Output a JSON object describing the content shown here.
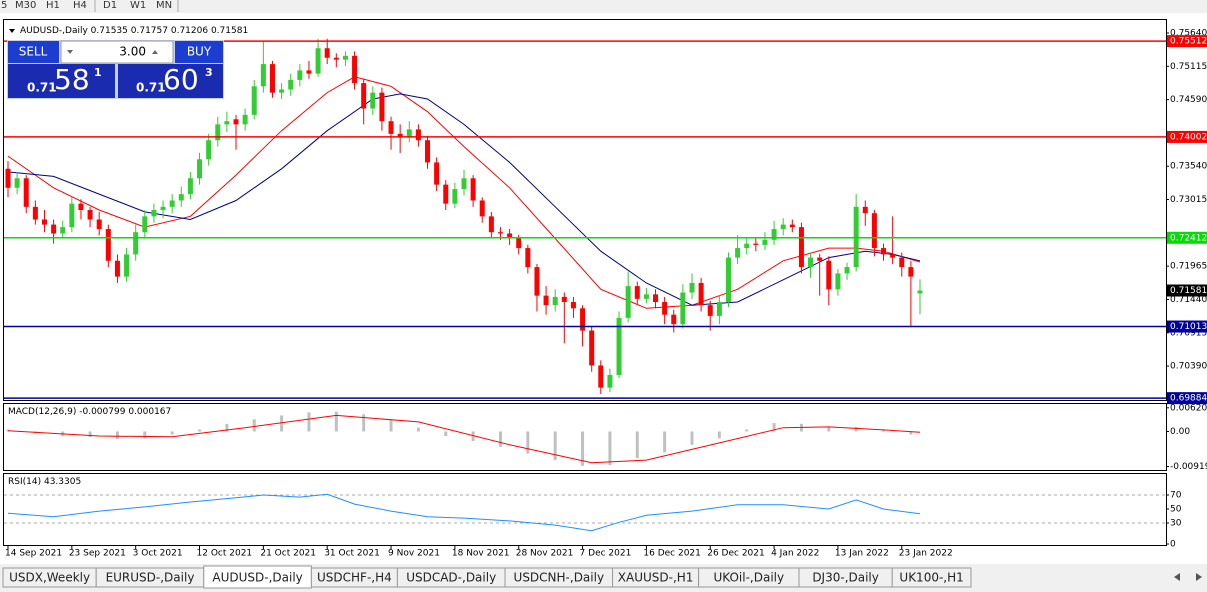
{
  "ui": {
    "toolbar": [
      "5",
      "M30",
      "H1",
      "H4",
      "D1",
      "W1",
      "MN"
    ],
    "trade": {
      "sell": "SELL",
      "buy": "BUY",
      "volume": "3.00",
      "sell_price": [
        "0.71",
        "58",
        "1"
      ],
      "buy_price": [
        "0.71",
        "60",
        "3"
      ]
    },
    "tabs": [
      "USDX,Weekly",
      "EURUSD-,Daily",
      "AUDUSD-,Daily",
      "USDCHF-,H4",
      "USDCAD-,Daily",
      "USDCNH-,Daily",
      "XAUUSD-,H1",
      "UKOil-,Daily",
      "DJ30-,Daily",
      "UK100-,H1"
    ],
    "active_tab": 2
  },
  "chart_data": [
    {
      "type": "candlestick",
      "title": "AUDUSD-,Daily",
      "up_color": "#32cd32",
      "down_color": "#ff0000",
      "ylim": [
        0.69855,
        0.75845
      ],
      "yticks": [
        {
          "value": 0.7564,
          "label": "0.75640"
        },
        {
          "value": 0.75115,
          "label": "0.75115"
        },
        {
          "value": 0.7459,
          "label": "0.74590"
        },
        {
          "value": 0.7354,
          "label": "0.73540"
        },
        {
          "value": 0.73015,
          "label": "0.73015"
        },
        {
          "value": 0.71965,
          "label": "0.71965"
        },
        {
          "value": 0.7144,
          "label": "0.71440"
        },
        {
          "value": 0.70915,
          "label": "0.70915"
        },
        {
          "value": 0.7039,
          "label": "0.70390"
        }
      ],
      "xticks": [
        {
          "value": 0,
          "label": "14 Sep 2021"
        },
        {
          "value": 7,
          "label": "23 Sep 2021"
        },
        {
          "value": 14,
          "label": "3 Oct 2021"
        },
        {
          "value": 21,
          "label": "12 Oct 2021"
        },
        {
          "value": 28,
          "label": "21 Oct 2021"
        },
        {
          "value": 35,
          "label": "31 Oct 2021"
        },
        {
          "value": 42,
          "label": "9 Nov 2021"
        },
        {
          "value": 49,
          "label": "18 Nov 2021"
        },
        {
          "value": 56,
          "label": "28 Nov 2021"
        },
        {
          "value": 63,
          "label": "7 Dec 2021"
        },
        {
          "value": 70,
          "label": "16 Dec 2021"
        },
        {
          "value": 77,
          "label": "26 Dec 2021"
        },
        {
          "value": 84,
          "label": "4 Jan 2022"
        },
        {
          "value": 91,
          "label": "13 Jan 2022"
        },
        {
          "value": 98,
          "label": "23 Jan 2022"
        }
      ],
      "hlines": [
        {
          "value": 0.75512,
          "color": "#ff0000"
        },
        {
          "value": 0.74002,
          "color": "#ff0000"
        },
        {
          "value": 0.72412,
          "color": "#00e000"
        },
        {
          "value": 0.71013,
          "color": "#0000a0"
        },
        {
          "value": 0.69884,
          "color": "#0000a0"
        }
      ],
      "candles": [
        [
          0.735,
          0.7362,
          0.7305,
          0.732
        ],
        [
          0.732,
          0.7345,
          0.731,
          0.7335
        ],
        [
          0.7335,
          0.734,
          0.728,
          0.729
        ],
        [
          0.729,
          0.73,
          0.7262,
          0.727
        ],
        [
          0.727,
          0.7285,
          0.725,
          0.7262
        ],
        [
          0.7262,
          0.727,
          0.7232,
          0.7248
        ],
        [
          0.7248,
          0.7268,
          0.724,
          0.7258
        ],
        [
          0.7258,
          0.7305,
          0.725,
          0.7295
        ],
        [
          0.7295,
          0.7302,
          0.727,
          0.7285
        ],
        [
          0.7285,
          0.729,
          0.7258,
          0.727
        ],
        [
          0.727,
          0.7282,
          0.7245,
          0.7255
        ],
        [
          0.7255,
          0.7262,
          0.7195,
          0.7205
        ],
        [
          0.7205,
          0.7215,
          0.717,
          0.718
        ],
        [
          0.718,
          0.7225,
          0.7172,
          0.7215
        ],
        [
          0.7215,
          0.7262,
          0.7205,
          0.725
        ],
        [
          0.725,
          0.7285,
          0.724,
          0.7275
        ],
        [
          0.7275,
          0.7295,
          0.7265,
          0.7285
        ],
        [
          0.7285,
          0.73,
          0.7272,
          0.729
        ],
        [
          0.729,
          0.731,
          0.728,
          0.73
        ],
        [
          0.73,
          0.7322,
          0.729,
          0.731
        ],
        [
          0.731,
          0.7345,
          0.7302,
          0.7335
        ],
        [
          0.7335,
          0.7375,
          0.7325,
          0.7365
        ],
        [
          0.7365,
          0.7405,
          0.7355,
          0.7395
        ],
        [
          0.7395,
          0.7432,
          0.7385,
          0.742
        ],
        [
          0.742,
          0.744,
          0.7408,
          0.7425
        ],
        [
          0.7428,
          0.7435,
          0.738,
          0.742
        ],
        [
          0.742,
          0.7445,
          0.741,
          0.7435
        ],
        [
          0.7435,
          0.749,
          0.7428,
          0.748
        ],
        [
          0.748,
          0.755,
          0.747,
          0.7515
        ],
        [
          0.7515,
          0.752,
          0.7462,
          0.747
        ],
        [
          0.747,
          0.7485,
          0.746,
          0.7475
        ],
        [
          0.7475,
          0.75,
          0.7465,
          0.749
        ],
        [
          0.749,
          0.7515,
          0.748,
          0.7505
        ],
        [
          0.7505,
          0.752,
          0.7492,
          0.75
        ],
        [
          0.75,
          0.7555,
          0.7495,
          0.754
        ],
        [
          0.754,
          0.7555,
          0.7515,
          0.7525
        ],
        [
          0.7525,
          0.7532,
          0.751,
          0.7522
        ],
        [
          0.7522,
          0.7535,
          0.7512,
          0.7528
        ],
        [
          0.7528,
          0.7535,
          0.7475,
          0.7485
        ],
        [
          0.7485,
          0.7492,
          0.742,
          0.7445
        ],
        [
          0.7445,
          0.748,
          0.7435,
          0.747
        ],
        [
          0.747,
          0.7478,
          0.741,
          0.7425
        ],
        [
          0.7425,
          0.7432,
          0.738,
          0.7405
        ],
        [
          0.7405,
          0.742,
          0.7375,
          0.74
        ],
        [
          0.74,
          0.7425,
          0.7392,
          0.7412
        ],
        [
          0.7412,
          0.742,
          0.7385,
          0.7395
        ],
        [
          0.7395,
          0.7402,
          0.735,
          0.736
        ],
        [
          0.736,
          0.7368,
          0.7315,
          0.7325
        ],
        [
          0.7325,
          0.7332,
          0.7285,
          0.7295
        ],
        [
          0.7295,
          0.7328,
          0.7288,
          0.7318
        ],
        [
          0.7318,
          0.7348,
          0.7308,
          0.7335
        ],
        [
          0.7335,
          0.734,
          0.729,
          0.73
        ],
        [
          0.73,
          0.7305,
          0.7265,
          0.7275
        ],
        [
          0.7275,
          0.7282,
          0.724,
          0.725
        ],
        [
          0.725,
          0.7258,
          0.7238,
          0.7248
        ],
        [
          0.7248,
          0.7255,
          0.723,
          0.724
        ],
        [
          0.724,
          0.7246,
          0.7215,
          0.7225
        ],
        [
          0.7225,
          0.723,
          0.7185,
          0.7195
        ],
        [
          0.7195,
          0.72,
          0.7125,
          0.715
        ],
        [
          0.715,
          0.7165,
          0.712,
          0.7135
        ],
        [
          0.7135,
          0.716,
          0.7125,
          0.7148
        ],
        [
          0.7148,
          0.7155,
          0.7075,
          0.714
        ],
        [
          0.714,
          0.7148,
          0.7115,
          0.713
        ],
        [
          0.713,
          0.7135,
          0.707,
          0.7095
        ],
        [
          0.7095,
          0.7102,
          0.703,
          0.704
        ],
        [
          0.704,
          0.7048,
          0.6995,
          0.7005
        ],
        [
          0.7005,
          0.7035,
          0.6998,
          0.7025
        ],
        [
          0.7025,
          0.7125,
          0.702,
          0.7115
        ],
        [
          0.7115,
          0.7188,
          0.7108,
          0.7165
        ],
        [
          0.7165,
          0.7172,
          0.7135,
          0.7145
        ],
        [
          0.7145,
          0.7162,
          0.7138,
          0.7152
        ],
        [
          0.7152,
          0.716,
          0.713,
          0.714
        ],
        [
          0.714,
          0.7148,
          0.7105,
          0.712
        ],
        [
          0.712,
          0.7128,
          0.7092,
          0.7105
        ],
        [
          0.7105,
          0.7168,
          0.7098,
          0.7155
        ],
        [
          0.7155,
          0.7185,
          0.7145,
          0.717
        ],
        [
          0.717,
          0.7178,
          0.7125,
          0.7135
        ],
        [
          0.7135,
          0.7142,
          0.7095,
          0.7118
        ],
        [
          0.7118,
          0.715,
          0.7105,
          0.714
        ],
        [
          0.714,
          0.7218,
          0.7132,
          0.721
        ],
        [
          0.721,
          0.7245,
          0.72,
          0.7225
        ],
        [
          0.7225,
          0.724,
          0.7215,
          0.7232
        ],
        [
          0.7232,
          0.724,
          0.722,
          0.723
        ],
        [
          0.723,
          0.725,
          0.7222,
          0.7238
        ],
        [
          0.7238,
          0.7268,
          0.723,
          0.7255
        ],
        [
          0.7255,
          0.7272,
          0.7245,
          0.7262
        ],
        [
          0.7262,
          0.727,
          0.725,
          0.7258
        ],
        [
          0.7258,
          0.7265,
          0.7185,
          0.7195
        ],
        [
          0.7195,
          0.7218,
          0.7178,
          0.721
        ],
        [
          0.721,
          0.7216,
          0.715,
          0.7205
        ],
        [
          0.7205,
          0.7212,
          0.7135,
          0.716
        ],
        [
          0.716,
          0.7192,
          0.715,
          0.7185
        ],
        [
          0.7185,
          0.7202,
          0.7175,
          0.7195
        ],
        [
          0.7195,
          0.731,
          0.7188,
          0.729
        ],
        [
          0.729,
          0.73,
          0.726,
          0.728
        ],
        [
          0.728,
          0.7285,
          0.7212,
          0.7225
        ],
        [
          0.7225,
          0.7232,
          0.7205,
          0.7215
        ],
        [
          0.7215,
          0.7275,
          0.72,
          0.721
        ],
        [
          0.721,
          0.7218,
          0.718,
          0.7195
        ],
        [
          0.7195,
          0.7205,
          0.71,
          0.718
        ],
        [
          0.71535,
          0.71757,
          0.71206,
          0.71581
        ]
      ],
      "series": [
        {
          "color": "#ff0000",
          "x": [
            0,
            5,
            10,
            15,
            20,
            25,
            30,
            35,
            38,
            42,
            46,
            50,
            55,
            60,
            65,
            70,
            75,
            80,
            85,
            90,
            93,
            96,
            100
          ],
          "values": [
            0.737,
            0.732,
            0.7285,
            0.7258,
            0.7275,
            0.734,
            0.741,
            0.747,
            0.7495,
            0.748,
            0.744,
            0.7385,
            0.732,
            0.724,
            0.716,
            0.713,
            0.7135,
            0.716,
            0.7205,
            0.7225,
            0.7225,
            0.722,
            0.7203
          ]
        },
        {
          "color": "#00008b",
          "x": [
            0,
            5,
            10,
            15,
            20,
            25,
            30,
            35,
            40,
            43,
            46,
            50,
            55,
            60,
            65,
            70,
            75,
            80,
            85,
            90,
            94,
            97,
            100
          ],
          "values": [
            0.7345,
            0.7338,
            0.731,
            0.7282,
            0.727,
            0.73,
            0.735,
            0.741,
            0.746,
            0.7468,
            0.746,
            0.742,
            0.736,
            0.729,
            0.722,
            0.717,
            0.7135,
            0.714,
            0.7175,
            0.721,
            0.722,
            0.7215,
            0.7205
          ]
        }
      ]
    },
    {
      "type": "macd",
      "title": "MACD(12,26,9)",
      "current": [
        -0.000799,
        0.000167
      ],
      "ylim": [
        -0.0101,
        0.0072
      ],
      "yticks": [
        0.006201,
        {
          "value": 0,
          "label": "0.00"
        },
        -0.00919
      ],
      "series": [
        {
          "type": "bar",
          "color": "#c0c0c0",
          "x": [
            0,
            3,
            6,
            9,
            12,
            15,
            18,
            21,
            24,
            27,
            30,
            33,
            36,
            39,
            42,
            45,
            48,
            51,
            54,
            57,
            60,
            63,
            66,
            69,
            72,
            75,
            78,
            81,
            84,
            87,
            90,
            93,
            96,
            99
          ],
          "values": [
            0.0005,
            -0.0005,
            -0.0012,
            -0.0015,
            -0.002,
            -0.0018,
            -0.0008,
            0.0005,
            0.002,
            0.0032,
            0.0042,
            0.005,
            0.0052,
            0.0045,
            0.003,
            0.001,
            -0.0012,
            -0.0025,
            -0.004,
            -0.0058,
            -0.0075,
            -0.009,
            -0.0088,
            -0.007,
            -0.0055,
            -0.0035,
            -0.0018,
            0.0005,
            0.0022,
            0.002,
            0.001,
            0.0012,
            0.0004,
            -0.0008
          ]
        },
        {
          "type": "line",
          "color": "#ff0000",
          "x": [
            0,
            10,
            18,
            26,
            36,
            45,
            55,
            64,
            70,
            78,
            85,
            90,
            96,
            100
          ],
          "values": [
            0.0002,
            -0.0012,
            -0.0014,
            0.001,
            0.0042,
            0.0025,
            -0.0035,
            -0.0082,
            -0.0075,
            -0.003,
            0.001,
            0.0012,
            0.0004,
            -0.0002
          ]
        }
      ]
    },
    {
      "type": "line",
      "title": "RSI(14)",
      "ylim": [
        0,
        100
      ],
      "yticks": [
        70,
        50,
        30,
        0
      ],
      "levels": [
        70,
        30
      ],
      "series": [
        {
          "color": "#1e90ff",
          "x": [
            0,
            5,
            10,
            15,
            20,
            25,
            28,
            32,
            35,
            38,
            42,
            46,
            50,
            55,
            60,
            64,
            67,
            70,
            75,
            80,
            85,
            90,
            93,
            96,
            100
          ],
          "values": [
            44,
            39,
            47,
            53,
            60,
            66,
            70,
            67,
            71,
            57,
            47,
            39,
            37,
            33,
            27,
            19,
            31,
            41,
            47,
            56,
            56,
            50,
            63,
            50,
            43.3305
          ]
        }
      ]
    }
  ]
}
